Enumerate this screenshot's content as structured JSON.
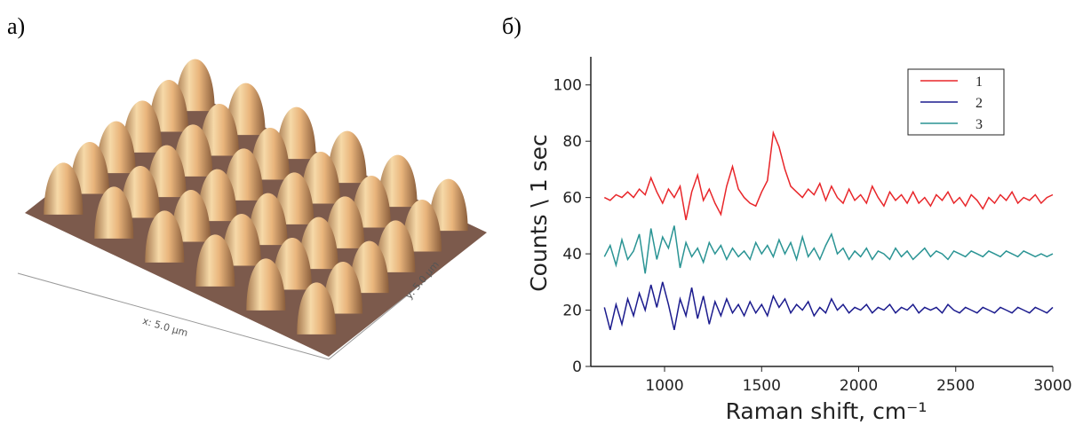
{
  "panel_a": {
    "label": "а)",
    "x_axis": "x: 5.0 µm",
    "y_axis": "y: 5.0 µm"
  },
  "chart_data": {
    "type": "line",
    "panel_label": "б)",
    "x_label": "Raman shift, cm⁻¹",
    "y_label": "Counts \\ 1 sec",
    "xlim": [
      620,
      3000
    ],
    "ylim": [
      0,
      110
    ],
    "xticks": [
      1000,
      1500,
      2000,
      2500,
      3000
    ],
    "yticks": [
      0,
      20,
      40,
      60,
      80,
      100
    ],
    "legend": "upper right",
    "x": [
      690,
      720,
      750,
      780,
      810,
      840,
      870,
      900,
      930,
      960,
      990,
      1020,
      1050,
      1080,
      1110,
      1140,
      1170,
      1200,
      1230,
      1260,
      1290,
      1320,
      1350,
      1380,
      1410,
      1440,
      1470,
      1500,
      1530,
      1560,
      1590,
      1620,
      1650,
      1680,
      1710,
      1740,
      1770,
      1800,
      1830,
      1860,
      1890,
      1920,
      1950,
      1980,
      2010,
      2040,
      2070,
      2100,
      2130,
      2160,
      2190,
      2220,
      2250,
      2280,
      2310,
      2340,
      2370,
      2400,
      2430,
      2460,
      2490,
      2520,
      2550,
      2580,
      2610,
      2640,
      2670,
      2700,
      2730,
      2760,
      2790,
      2820,
      2850,
      2880,
      2910,
      2940,
      2970,
      3000
    ],
    "series": [
      {
        "name": "1",
        "color": "#e8262a",
        "values": [
          60,
          59,
          61,
          60,
          62,
          60,
          63,
          61,
          67,
          62,
          58,
          63,
          60,
          64,
          52,
          62,
          68,
          59,
          63,
          58,
          54,
          64,
          71,
          63,
          60,
          58,
          57,
          62,
          66,
          83,
          78,
          70,
          64,
          62,
          60,
          63,
          61,
          65,
          59,
          64,
          60,
          58,
          63,
          59,
          61,
          58,
          64,
          60,
          57,
          62,
          59,
          61,
          58,
          62,
          58,
          60,
          57,
          61,
          59,
          62,
          58,
          60,
          57,
          61,
          59,
          56,
          60,
          58,
          61,
          59,
          62,
          58,
          60,
          59,
          61,
          58,
          60,
          61
        ]
      },
      {
        "name": "2",
        "color": "#1c1c8e",
        "values": [
          21,
          13,
          22,
          15,
          24,
          18,
          26,
          20,
          29,
          21,
          30,
          22,
          13,
          24,
          18,
          28,
          17,
          25,
          15,
          23,
          18,
          24,
          19,
          22,
          18,
          23,
          19,
          22,
          18,
          25,
          21,
          24,
          19,
          22,
          20,
          23,
          18,
          21,
          19,
          24,
          20,
          22,
          19,
          21,
          20,
          22,
          19,
          21,
          20,
          22,
          19,
          21,
          20,
          22,
          19,
          21,
          20,
          21,
          19,
          22,
          20,
          19,
          21,
          20,
          19,
          21,
          20,
          19,
          21,
          20,
          19,
          21,
          20,
          19,
          21,
          20,
          19,
          21
        ]
      },
      {
        "name": "3",
        "color": "#2a9494",
        "values": [
          39,
          43,
          36,
          45,
          38,
          41,
          47,
          33,
          49,
          38,
          46,
          42,
          50,
          35,
          44,
          39,
          42,
          37,
          44,
          40,
          43,
          38,
          42,
          39,
          41,
          38,
          44,
          40,
          43,
          39,
          45,
          40,
          44,
          38,
          46,
          39,
          42,
          38,
          43,
          47,
          40,
          42,
          38,
          41,
          39,
          42,
          38,
          41,
          40,
          38,
          42,
          39,
          41,
          38,
          40,
          42,
          39,
          41,
          40,
          38,
          41,
          40,
          39,
          41,
          40,
          39,
          41,
          40,
          39,
          41,
          40,
          39,
          41,
          40,
          39,
          40,
          39,
          40
        ]
      }
    ]
  }
}
